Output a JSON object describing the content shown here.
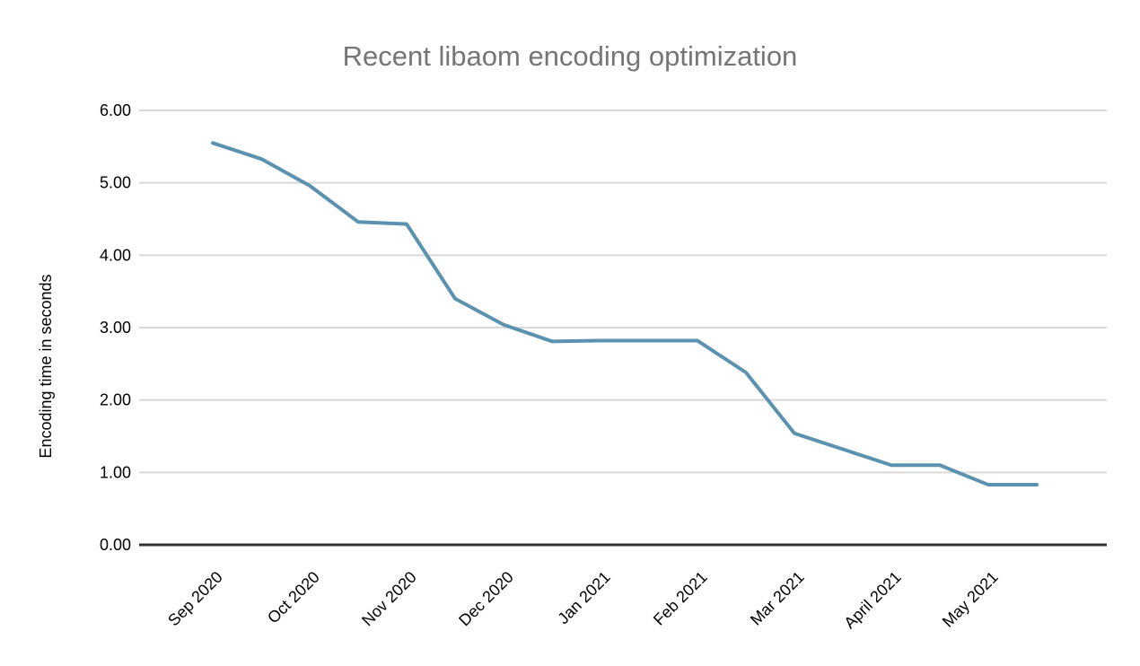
{
  "chart_data": {
    "type": "line",
    "title": "Recent libaom encoding optimization",
    "ylabel": "Encoding time in seconds",
    "xlabel": "",
    "ylim": [
      0,
      6
    ],
    "yticks": [
      "0.00",
      "1.00",
      "2.00",
      "3.00",
      "4.00",
      "5.00",
      "6.00"
    ],
    "categories": [
      "Sep 2020",
      "Oct 2020",
      "Nov 2020",
      "Dec 2020",
      "Jan 2021",
      "Feb 2021",
      "Mar 2021",
      "April 2021",
      "May 2021"
    ],
    "tick_every": 2,
    "values": [
      5.55,
      5.33,
      4.96,
      4.46,
      4.43,
      3.4,
      3.04,
      2.81,
      2.82,
      2.82,
      2.82,
      2.38,
      1.54,
      1.32,
      1.1,
      1.1,
      0.83,
      0.83
    ],
    "grid": true,
    "legend": "none"
  },
  "colors": {
    "line": "#5b92b0",
    "title_text": "#757575",
    "gridline": "#d9d9d9",
    "axis_line": "#333333",
    "tick_text": "#000000",
    "background": "#ffffff"
  }
}
